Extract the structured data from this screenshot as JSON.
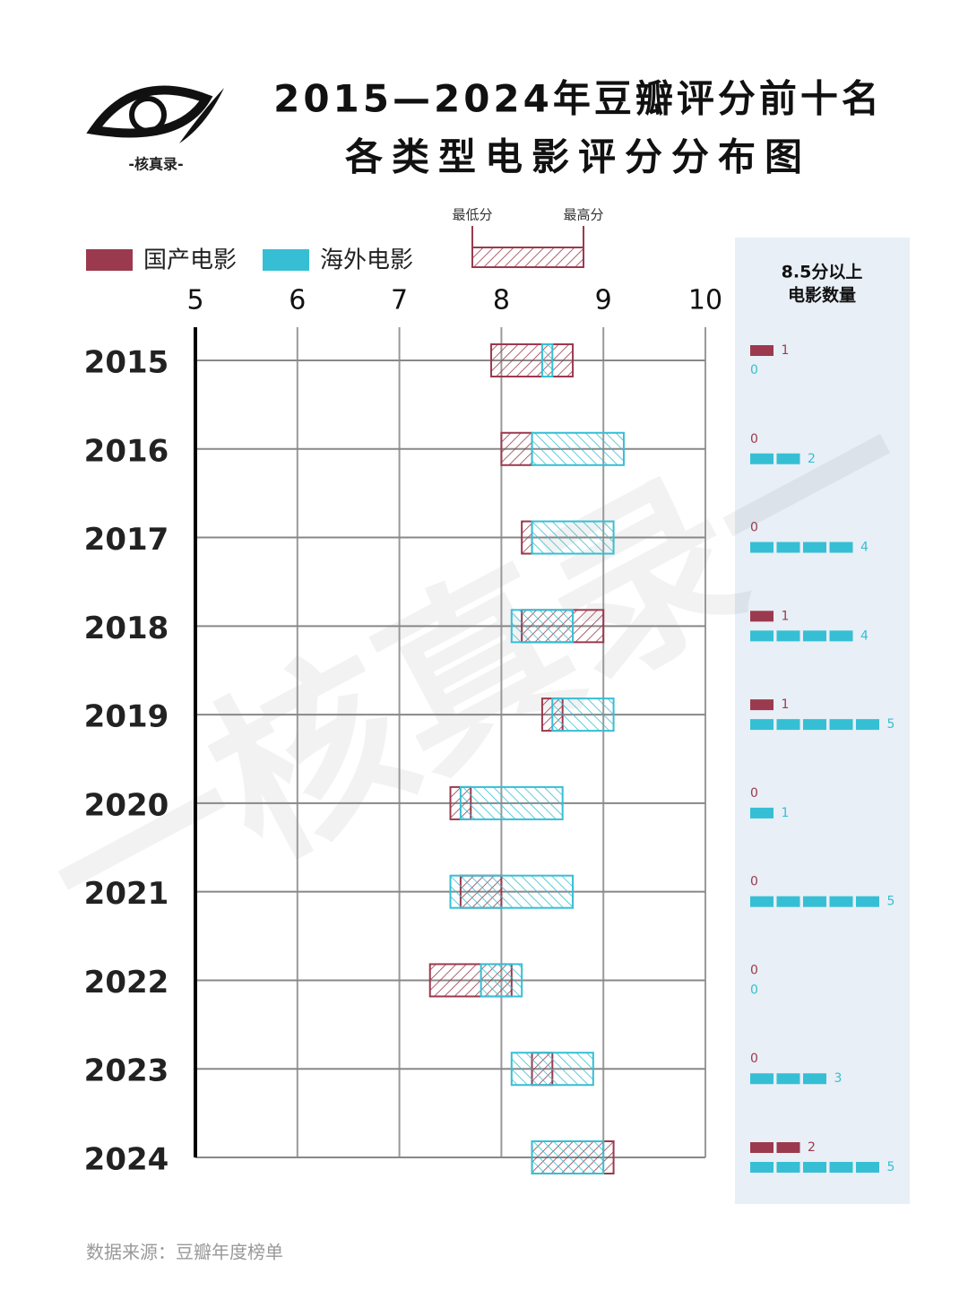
{
  "chart_data": {
    "type": "range-bar",
    "title": [
      "2015—2024年豆瓣评分前十名",
      "各类型电影评分分布图"
    ],
    "logo_text": "-核真录-",
    "watermark": "一核真录一",
    "key_labels": [
      "最低分",
      "最高分"
    ],
    "categories": [
      "2015",
      "2016",
      "2017",
      "2018",
      "2019",
      "2020",
      "2021",
      "2022",
      "2023",
      "2024"
    ],
    "xlim": [
      5,
      10
    ],
    "xticks": [
      5,
      6,
      7,
      8,
      9,
      10
    ],
    "series": [
      {
        "name": "国产电影",
        "color": "#9b3a4e",
        "low": [
          7.9,
          8.0,
          8.2,
          8.2,
          8.4,
          7.5,
          7.6,
          7.3,
          8.3,
          8.3
        ],
        "high": [
          8.7,
          8.3,
          8.3,
          9.0,
          8.6,
          7.7,
          8.0,
          8.1,
          8.5,
          9.1
        ],
        "count": [
          1,
          0,
          0,
          1,
          1,
          0,
          0,
          0,
          0,
          2
        ]
      },
      {
        "name": "海外电影",
        "color": "#36bfd4",
        "low": [
          8.4,
          8.3,
          8.3,
          8.1,
          8.5,
          7.6,
          7.5,
          7.8,
          8.1,
          8.3
        ],
        "high": [
          8.5,
          9.2,
          9.1,
          8.7,
          9.1,
          8.6,
          8.7,
          8.2,
          8.9,
          9.0
        ],
        "count": [
          0,
          2,
          4,
          4,
          5,
          1,
          5,
          0,
          3,
          5
        ]
      }
    ],
    "count_title": [
      "8.5分以上",
      "电影数量"
    ],
    "source": "数据来源：豆瓣年度榜单"
  }
}
